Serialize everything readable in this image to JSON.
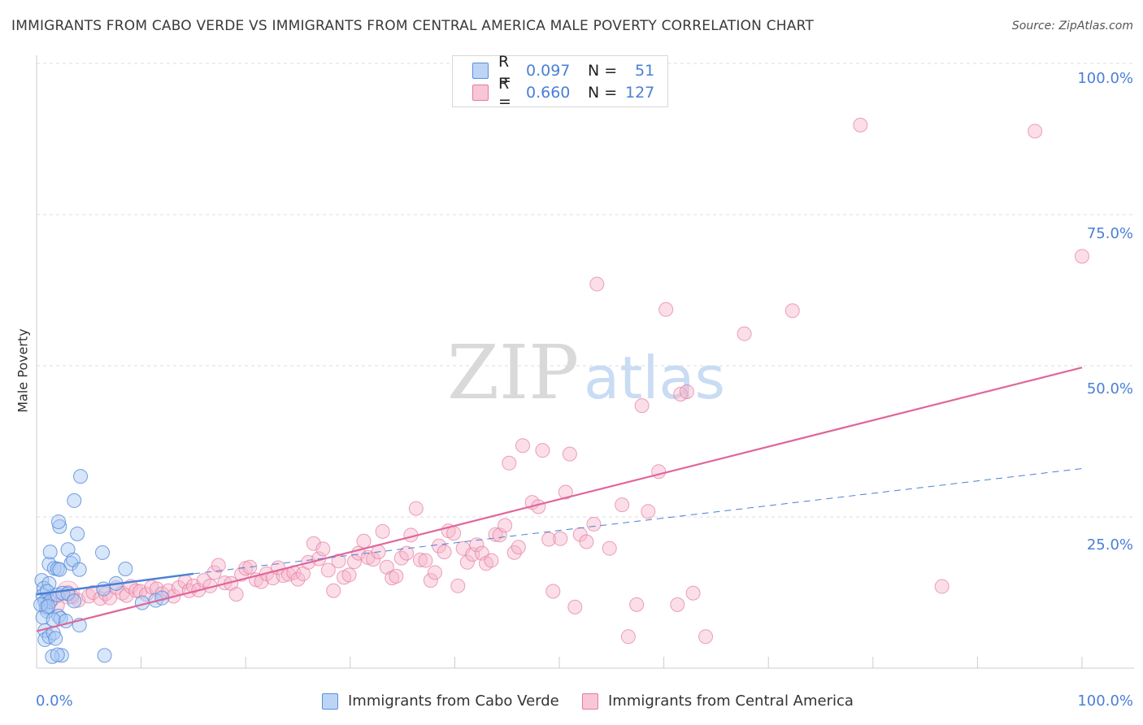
{
  "header": {
    "title": "IMMIGRANTS FROM CABO VERDE VS IMMIGRANTS FROM CENTRAL AMERICA MALE POVERTY CORRELATION CHART",
    "source": "Source: ZipAtlas.com"
  },
  "watermark": {
    "zip": "ZIP",
    "atlas": "atlas"
  },
  "legend": {
    "r_label": "R =",
    "n_label": "N =",
    "series": [
      {
        "r": "0.097",
        "n": "51"
      },
      {
        "r": "0.660",
        "n": "127"
      }
    ]
  },
  "bottom_legend": {
    "series1": "Immigrants from Cabo Verde",
    "series2": "Immigrants from Central America"
  },
  "colors": {
    "blue_fill": "#a9c8f5",
    "blue_stroke": "#5b8ed8",
    "pink_fill": "#f7b6cb",
    "pink_stroke": "#e27aa0",
    "blue_line": "#4a7fd6",
    "pink_line": "#e0669a",
    "tick_text": "#4a7fd6"
  },
  "chart_data": {
    "type": "scatter",
    "title": "IMMIGRANTS FROM CABO VERDE VS IMMIGRANTS FROM CENTRAL AMERICA MALE POVERTY CORRELATION CHART",
    "xlabel": "",
    "ylabel": "Male Poverty",
    "xlim": [
      0,
      100
    ],
    "ylim": [
      0,
      100
    ],
    "x_tick_labels": [
      "0.0%",
      "100.0%"
    ],
    "y_tick_labels": [
      "25.0%",
      "50.0%",
      "75.0%",
      "100.0%"
    ],
    "y_ticks": [
      25,
      50,
      75,
      100
    ],
    "grid": true,
    "legend_position": "top-center",
    "series": [
      {
        "name": "Immigrants from Cabo Verde",
        "r": 0.097,
        "n": 51,
        "trend": {
          "solid": [
            [
              0,
              12.2
            ],
            [
              15,
              15.6
            ]
          ],
          "dashed": [
            [
              15,
              15.6
            ],
            [
              100,
              33.0
            ]
          ]
        },
        "points": [
          [
            0.5,
            14.5
          ],
          [
            0.7,
            13.2
          ],
          [
            0.6,
            12.0
          ],
          [
            0.8,
            11.0
          ],
          [
            0.9,
            10.0
          ],
          [
            1.0,
            9.4
          ],
          [
            0.6,
            8.4
          ],
          [
            0.8,
            6.2
          ],
          [
            0.8,
            4.7
          ],
          [
            1.2,
            5.2
          ],
          [
            1.6,
            5.8
          ],
          [
            1.8,
            4.9
          ],
          [
            1.2,
            14.0
          ],
          [
            1.0,
            12.7
          ],
          [
            1.3,
            11.0
          ],
          [
            1.2,
            17.2
          ],
          [
            1.3,
            19.2
          ],
          [
            1.7,
            16.5
          ],
          [
            2.0,
            16.4
          ],
          [
            2.2,
            16.3
          ],
          [
            2.4,
            2.1
          ],
          [
            2.1,
            8.6
          ],
          [
            2.3,
            8.2
          ],
          [
            1.6,
            8.0
          ],
          [
            2.0,
            12.1
          ],
          [
            2.5,
            12.4
          ],
          [
            2.2,
            23.4
          ],
          [
            2.1,
            24.2
          ],
          [
            3.0,
            12.3
          ],
          [
            3.0,
            19.6
          ],
          [
            3.3,
            17.3
          ],
          [
            3.5,
            17.9
          ],
          [
            3.6,
            11.1
          ],
          [
            3.6,
            27.7
          ],
          [
            3.9,
            22.2
          ],
          [
            4.1,
            16.3
          ],
          [
            4.2,
            31.7
          ],
          [
            4.1,
            7.1
          ],
          [
            6.3,
            19.1
          ],
          [
            6.4,
            13.1
          ],
          [
            6.5,
            2.1
          ],
          [
            7.6,
            14.0
          ],
          [
            8.5,
            16.4
          ],
          [
            10.1,
            10.8
          ],
          [
            11.4,
            11.2
          ],
          [
            12.0,
            11.6
          ],
          [
            1.5,
            1.9
          ],
          [
            2.0,
            2.2
          ],
          [
            0.4,
            10.5
          ],
          [
            1.1,
            10.2
          ],
          [
            2.8,
            7.8
          ]
        ]
      },
      {
        "name": "Immigrants from Central America",
        "r": 0.66,
        "n": 127,
        "trend": {
          "solid": [
            [
              0,
              6.1
            ],
            [
              100,
              49.7
            ]
          ]
        },
        "points": [
          [
            1.0,
            10.7
          ],
          [
            1.6,
            11.5
          ],
          [
            2.0,
            10.4
          ],
          [
            3.0,
            12.5
          ],
          [
            3.4,
            11.8
          ],
          [
            4.0,
            11.2
          ],
          [
            5.0,
            11.9
          ],
          [
            5.4,
            12.5
          ],
          [
            6.1,
            11.5
          ],
          [
            6.6,
            12.3
          ],
          [
            7.0,
            11.6
          ],
          [
            7.6,
            13.3
          ],
          [
            8.2,
            12.4
          ],
          [
            8.6,
            12.0
          ],
          [
            9.0,
            13.5
          ],
          [
            9.5,
            12.8
          ],
          [
            9.9,
            12.7
          ],
          [
            10.5,
            12.2
          ],
          [
            11.0,
            13.4
          ],
          [
            11.5,
            13.1
          ],
          [
            12.0,
            12.3
          ],
          [
            12.6,
            12.8
          ],
          [
            13.1,
            11.9
          ],
          [
            13.6,
            13.3
          ],
          [
            14.2,
            14.3
          ],
          [
            14.6,
            12.8
          ],
          [
            15.0,
            13.6
          ],
          [
            15.5,
            12.9
          ],
          [
            16.0,
            14.5
          ],
          [
            16.6,
            13.6
          ],
          [
            17.0,
            15.8
          ],
          [
            17.4,
            17.0
          ],
          [
            18.0,
            14.1
          ],
          [
            18.6,
            14.0
          ],
          [
            19.1,
            12.2
          ],
          [
            19.6,
            15.5
          ],
          [
            20.0,
            16.5
          ],
          [
            20.4,
            16.7
          ],
          [
            21.0,
            14.6
          ],
          [
            21.5,
            14.3
          ],
          [
            22.0,
            15.6
          ],
          [
            22.6,
            14.9
          ],
          [
            23.1,
            16.6
          ],
          [
            23.6,
            15.3
          ],
          [
            24.1,
            15.5
          ],
          [
            24.6,
            15.8
          ],
          [
            25.0,
            14.7
          ],
          [
            25.5,
            15.6
          ],
          [
            26.0,
            17.5
          ],
          [
            26.5,
            20.6
          ],
          [
            27.0,
            18.1
          ],
          [
            27.4,
            19.7
          ],
          [
            27.9,
            16.2
          ],
          [
            28.4,
            12.8
          ],
          [
            28.9,
            17.7
          ],
          [
            29.4,
            15.0
          ],
          [
            29.9,
            15.4
          ],
          [
            30.4,
            17.6
          ],
          [
            30.8,
            19.0
          ],
          [
            31.3,
            21.0
          ],
          [
            31.7,
            18.3
          ],
          [
            32.2,
            18.0
          ],
          [
            32.7,
            19.2
          ],
          [
            33.1,
            22.6
          ],
          [
            33.5,
            16.7
          ],
          [
            34.0,
            14.9
          ],
          [
            34.4,
            15.2
          ],
          [
            34.9,
            18.2
          ],
          [
            35.4,
            19.0
          ],
          [
            35.8,
            22.0
          ],
          [
            36.3,
            26.4
          ],
          [
            36.7,
            17.9
          ],
          [
            37.2,
            17.8
          ],
          [
            37.7,
            14.5
          ],
          [
            38.1,
            15.8
          ],
          [
            38.5,
            20.2
          ],
          [
            39.0,
            19.2
          ],
          [
            39.4,
            22.7
          ],
          [
            39.9,
            22.3
          ],
          [
            40.3,
            13.6
          ],
          [
            40.8,
            19.8
          ],
          [
            41.2,
            17.5
          ],
          [
            41.7,
            18.8
          ],
          [
            42.1,
            20.4
          ],
          [
            42.6,
            19.0
          ],
          [
            43.0,
            17.3
          ],
          [
            43.5,
            17.8
          ],
          [
            43.9,
            22.1
          ],
          [
            44.3,
            22.0
          ],
          [
            44.8,
            23.6
          ],
          [
            45.2,
            33.9
          ],
          [
            45.7,
            19.1
          ],
          [
            46.1,
            20.0
          ],
          [
            46.5,
            36.8
          ],
          [
            47.4,
            27.4
          ],
          [
            48.0,
            26.7
          ],
          [
            48.4,
            36.0
          ],
          [
            49.0,
            21.3
          ],
          [
            49.4,
            12.7
          ],
          [
            50.1,
            21.4
          ],
          [
            50.6,
            29.1
          ],
          [
            51.0,
            35.4
          ],
          [
            51.5,
            10.1
          ],
          [
            52.0,
            22.1
          ],
          [
            52.6,
            20.9
          ],
          [
            53.3,
            23.8
          ],
          [
            53.6,
            63.5
          ],
          [
            54.8,
            19.8
          ],
          [
            56.0,
            27.0
          ],
          [
            56.6,
            5.2
          ],
          [
            57.4,
            10.5
          ],
          [
            57.9,
            43.4
          ],
          [
            58.5,
            25.9
          ],
          [
            59.5,
            32.5
          ],
          [
            61.3,
            10.5
          ],
          [
            61.6,
            45.3
          ],
          [
            62.2,
            45.7
          ],
          [
            62.8,
            12.4
          ],
          [
            64.0,
            5.2
          ],
          [
            67.7,
            55.3
          ],
          [
            72.3,
            59.1
          ],
          [
            78.8,
            89.8
          ],
          [
            86.6,
            13.5
          ],
          [
            95.5,
            88.8
          ],
          [
            100.0,
            68.1
          ],
          [
            60.2,
            59.3
          ]
        ]
      }
    ]
  }
}
